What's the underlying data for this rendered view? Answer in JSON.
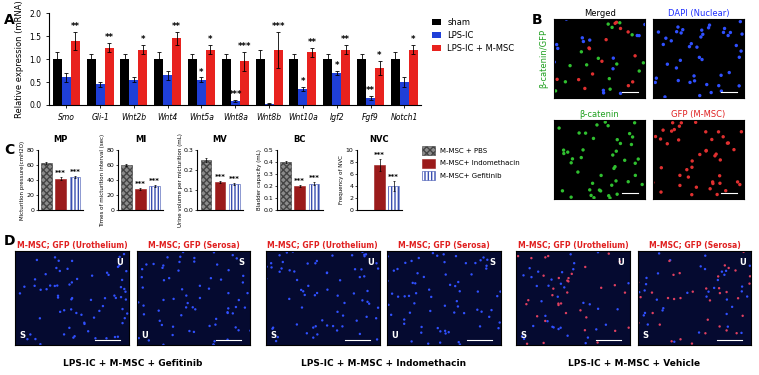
{
  "panel_labels": [
    "A",
    "B",
    "C",
    "D"
  ],
  "chart_data": [
    {
      "type": "bar",
      "y_label": "Relative expression (mRNA)",
      "categories": [
        "Smo",
        "Gli-1",
        "Wnt2b",
        "Wnt4",
        "Wnt5a",
        "Wnt8a",
        "Wnt8b",
        "Wnt10a",
        "Igf2",
        "Fgf9",
        "Notch1"
      ],
      "series": [
        {
          "name": "sham",
          "color": "#000000",
          "values": [
            1.0,
            1.0,
            1.0,
            1.0,
            1.0,
            1.0,
            1.0,
            1.0,
            1.0,
            1.0,
            1.0
          ],
          "errors": [
            0.15,
            0.1,
            0.1,
            0.15,
            0.1,
            0.1,
            0.2,
            0.1,
            0.1,
            0.1,
            0.15
          ],
          "significance": [
            null,
            null,
            null,
            null,
            null,
            null,
            null,
            null,
            null,
            null,
            null
          ]
        },
        {
          "name": "LPS-IC",
          "color": "#1f3fd8",
          "values": [
            0.6,
            0.45,
            0.55,
            0.65,
            0.55,
            0.08,
            0.03,
            0.35,
            0.7,
            0.15,
            0.5
          ],
          "errors": [
            0.1,
            0.05,
            0.05,
            0.1,
            0.05,
            0.02,
            0.01,
            0.05,
            0.05,
            0.05,
            0.1
          ],
          "significance": [
            null,
            null,
            null,
            null,
            "*",
            "***",
            null,
            "*",
            "*",
            "**",
            null
          ]
        },
        {
          "name": "LPS-IC + M-MSC",
          "color": "#e8221e",
          "values": [
            1.4,
            1.25,
            1.2,
            1.45,
            1.2,
            0.95,
            1.2,
            1.15,
            1.2,
            0.8,
            1.2
          ],
          "errors": [
            0.2,
            0.1,
            0.1,
            0.15,
            0.1,
            0.2,
            0.4,
            0.1,
            0.1,
            0.15,
            0.1
          ],
          "significance": [
            "**",
            "**",
            "*",
            "**",
            "*",
            "***",
            "***",
            "**",
            "**",
            "*",
            "*"
          ]
        }
      ],
      "ylim": [
        0,
        2.0
      ],
      "yticks": [
        {
          "value": 0,
          "label": "0.0"
        },
        0.5,
        {
          "value": 1.0,
          "label": "1.0"
        },
        1.5,
        {
          "value": 2.0,
          "label": "2.0"
        }
      ],
      "legend": "upper left"
    },
    {
      "type": "bar",
      "title": "MP",
      "y_label": "Micturition pressure(cmH2O)",
      "categories": [
        "M-MSC + PBS",
        "M-MSC+ Indomethacin",
        "M-MSC+ Gefitinib"
      ],
      "colors": [
        "#8c8c8c",
        "#9b1b1b",
        "#ffffff"
      ],
      "values": [
        63,
        42,
        44
      ],
      "errors": [
        1.0,
        1.5,
        1.2
      ],
      "significance": [
        null,
        "***",
        "***"
      ],
      "ylim": [
        0,
        80
      ],
      "yticks": [
        0,
        20,
        40,
        60,
        80
      ],
      "tick_labels": "y"
    },
    {
      "type": "bar",
      "title": "MI",
      "y_label": "Times of micturition interval (sec)",
      "categories": [
        "M-MSC + PBS",
        "M-MSC+ Indomethacin",
        "M-MSC+ Gefitinib"
      ],
      "colors": [
        "#8c8c8c",
        "#9b1b1b",
        "#ffffff"
      ],
      "values": [
        60,
        28,
        32
      ],
      "errors": [
        1.0,
        1.5,
        1.5
      ],
      "significance": [
        null,
        "***",
        "***"
      ],
      "ylim": [
        0,
        80
      ],
      "yticks": [
        0,
        20,
        40,
        60,
        80
      ],
      "tick_labels": "y"
    },
    {
      "type": "bar",
      "title": "MV",
      "y_label": "Urine volume per micturition (mL)",
      "categories": [
        "M-MSC + PBS",
        "M-MSC+ Indomethacin",
        "M-MSC+ Gefitinib"
      ],
      "colors": [
        "#8c8c8c",
        "#9b1b1b",
        "#ffffff"
      ],
      "values": [
        0.25,
        0.14,
        0.13
      ],
      "errors": [
        0.01,
        0.005,
        0.005
      ],
      "significance": [
        null,
        "***",
        "***"
      ],
      "ylim": [
        0,
        0.3
      ],
      "yticks": [
        {
          "value": 0,
          "label": "0.0"
        },
        0.1,
        0.2,
        0.3
      ],
      "tick_labels": "y"
    },
    {
      "type": "bar",
      "title": "BC",
      "y_label": "Bladder capacity (mL)",
      "categories": [
        "M-MSC + PBS",
        "M-MSC+ Indomethacin",
        "M-MSC+ Gefitinib"
      ],
      "colors": [
        "#8c8c8c",
        "#9b1b1b",
        "#ffffff"
      ],
      "values": [
        0.4,
        0.2,
        0.22
      ],
      "errors": [
        0.01,
        0.01,
        0.01
      ],
      "significance": [
        null,
        "***",
        "***"
      ],
      "ylim": [
        0,
        0.5
      ],
      "yticks": [
        {
          "value": 0,
          "label": "0.0"
        },
        0.1,
        0.2,
        0.3,
        0.4,
        0.5
      ],
      "tick_labels": "y"
    },
    {
      "type": "bar",
      "title": "NVC",
      "y_label": "Frequency of NVC",
      "categories": [
        "M-MSC + PBS",
        "M-MSC+ Indomethacin",
        "M-MSC+ Gefitinib"
      ],
      "colors": [
        "#8c8c8c",
        "#9b1b1b",
        "#ffffff"
      ],
      "values": [
        0,
        7.5,
        4
      ],
      "errors": [
        0,
        1.0,
        0.8
      ],
      "significance": [
        null,
        "***",
        "***"
      ],
      "ylim": [
        0,
        10
      ],
      "yticks": [
        0,
        2,
        4,
        6,
        8,
        10
      ],
      "tick_labels": "y",
      "legend": "center left"
    }
  ],
  "images": {
    "B": [
      {
        "title": "Merged",
        "side_label": "β-catenin/GFP",
        "color": "#000000",
        "colors": [
          "#30c030",
          "#e03030",
          "#3050ff"
        ]
      },
      {
        "title": "DAPI (Nuclear)",
        "color": "#2030ff",
        "colors": [
          "#3050ff"
        ]
      },
      {
        "title": "β-catenin",
        "color": "#20a020",
        "colors": [
          "#30c030"
        ]
      },
      {
        "title": "GFP (M-MSC)",
        "color": "#e02020",
        "colors": [
          "#e03030"
        ]
      }
    ],
    "D": [
      {
        "caption": "LPS-IC + M-MSC + Gefitinib",
        "panels": [
          {
            "title": "M-MSC; GFP (Urothelium)",
            "labels": [
              "U",
              "S"
            ],
            "colors": [
              "#3050ff"
            ]
          },
          {
            "title": "M-MSC; GFP (Serosa)",
            "labels": [
              "S",
              "U"
            ],
            "colors": [
              "#3050ff"
            ]
          }
        ]
      },
      {
        "caption": "LPS-IC + M-MSC + Indomethacin",
        "panels": [
          {
            "title": "M-MSC; GFP (Urothelium)",
            "labels": [
              "U",
              "S"
            ],
            "colors": [
              "#3050ff"
            ]
          },
          {
            "title": "M-MSC; GFP (Serosa)",
            "labels": [
              "S",
              "U"
            ],
            "colors": [
              "#3050ff"
            ]
          }
        ]
      },
      {
        "caption": "LPS-IC + M-MSC + Vehicle",
        "panels": [
          {
            "title": "M-MSC; GFP (Urothelium)",
            "labels": [
              "U",
              "S"
            ],
            "colors": [
              "#e04060",
              "#3050ff"
            ]
          },
          {
            "title": "M-MSC; GFP (Serosa)",
            "labels": [
              "U",
              "S"
            ],
            "colors": [
              "#e04060",
              "#3050ff"
            ]
          }
        ]
      }
    ]
  }
}
